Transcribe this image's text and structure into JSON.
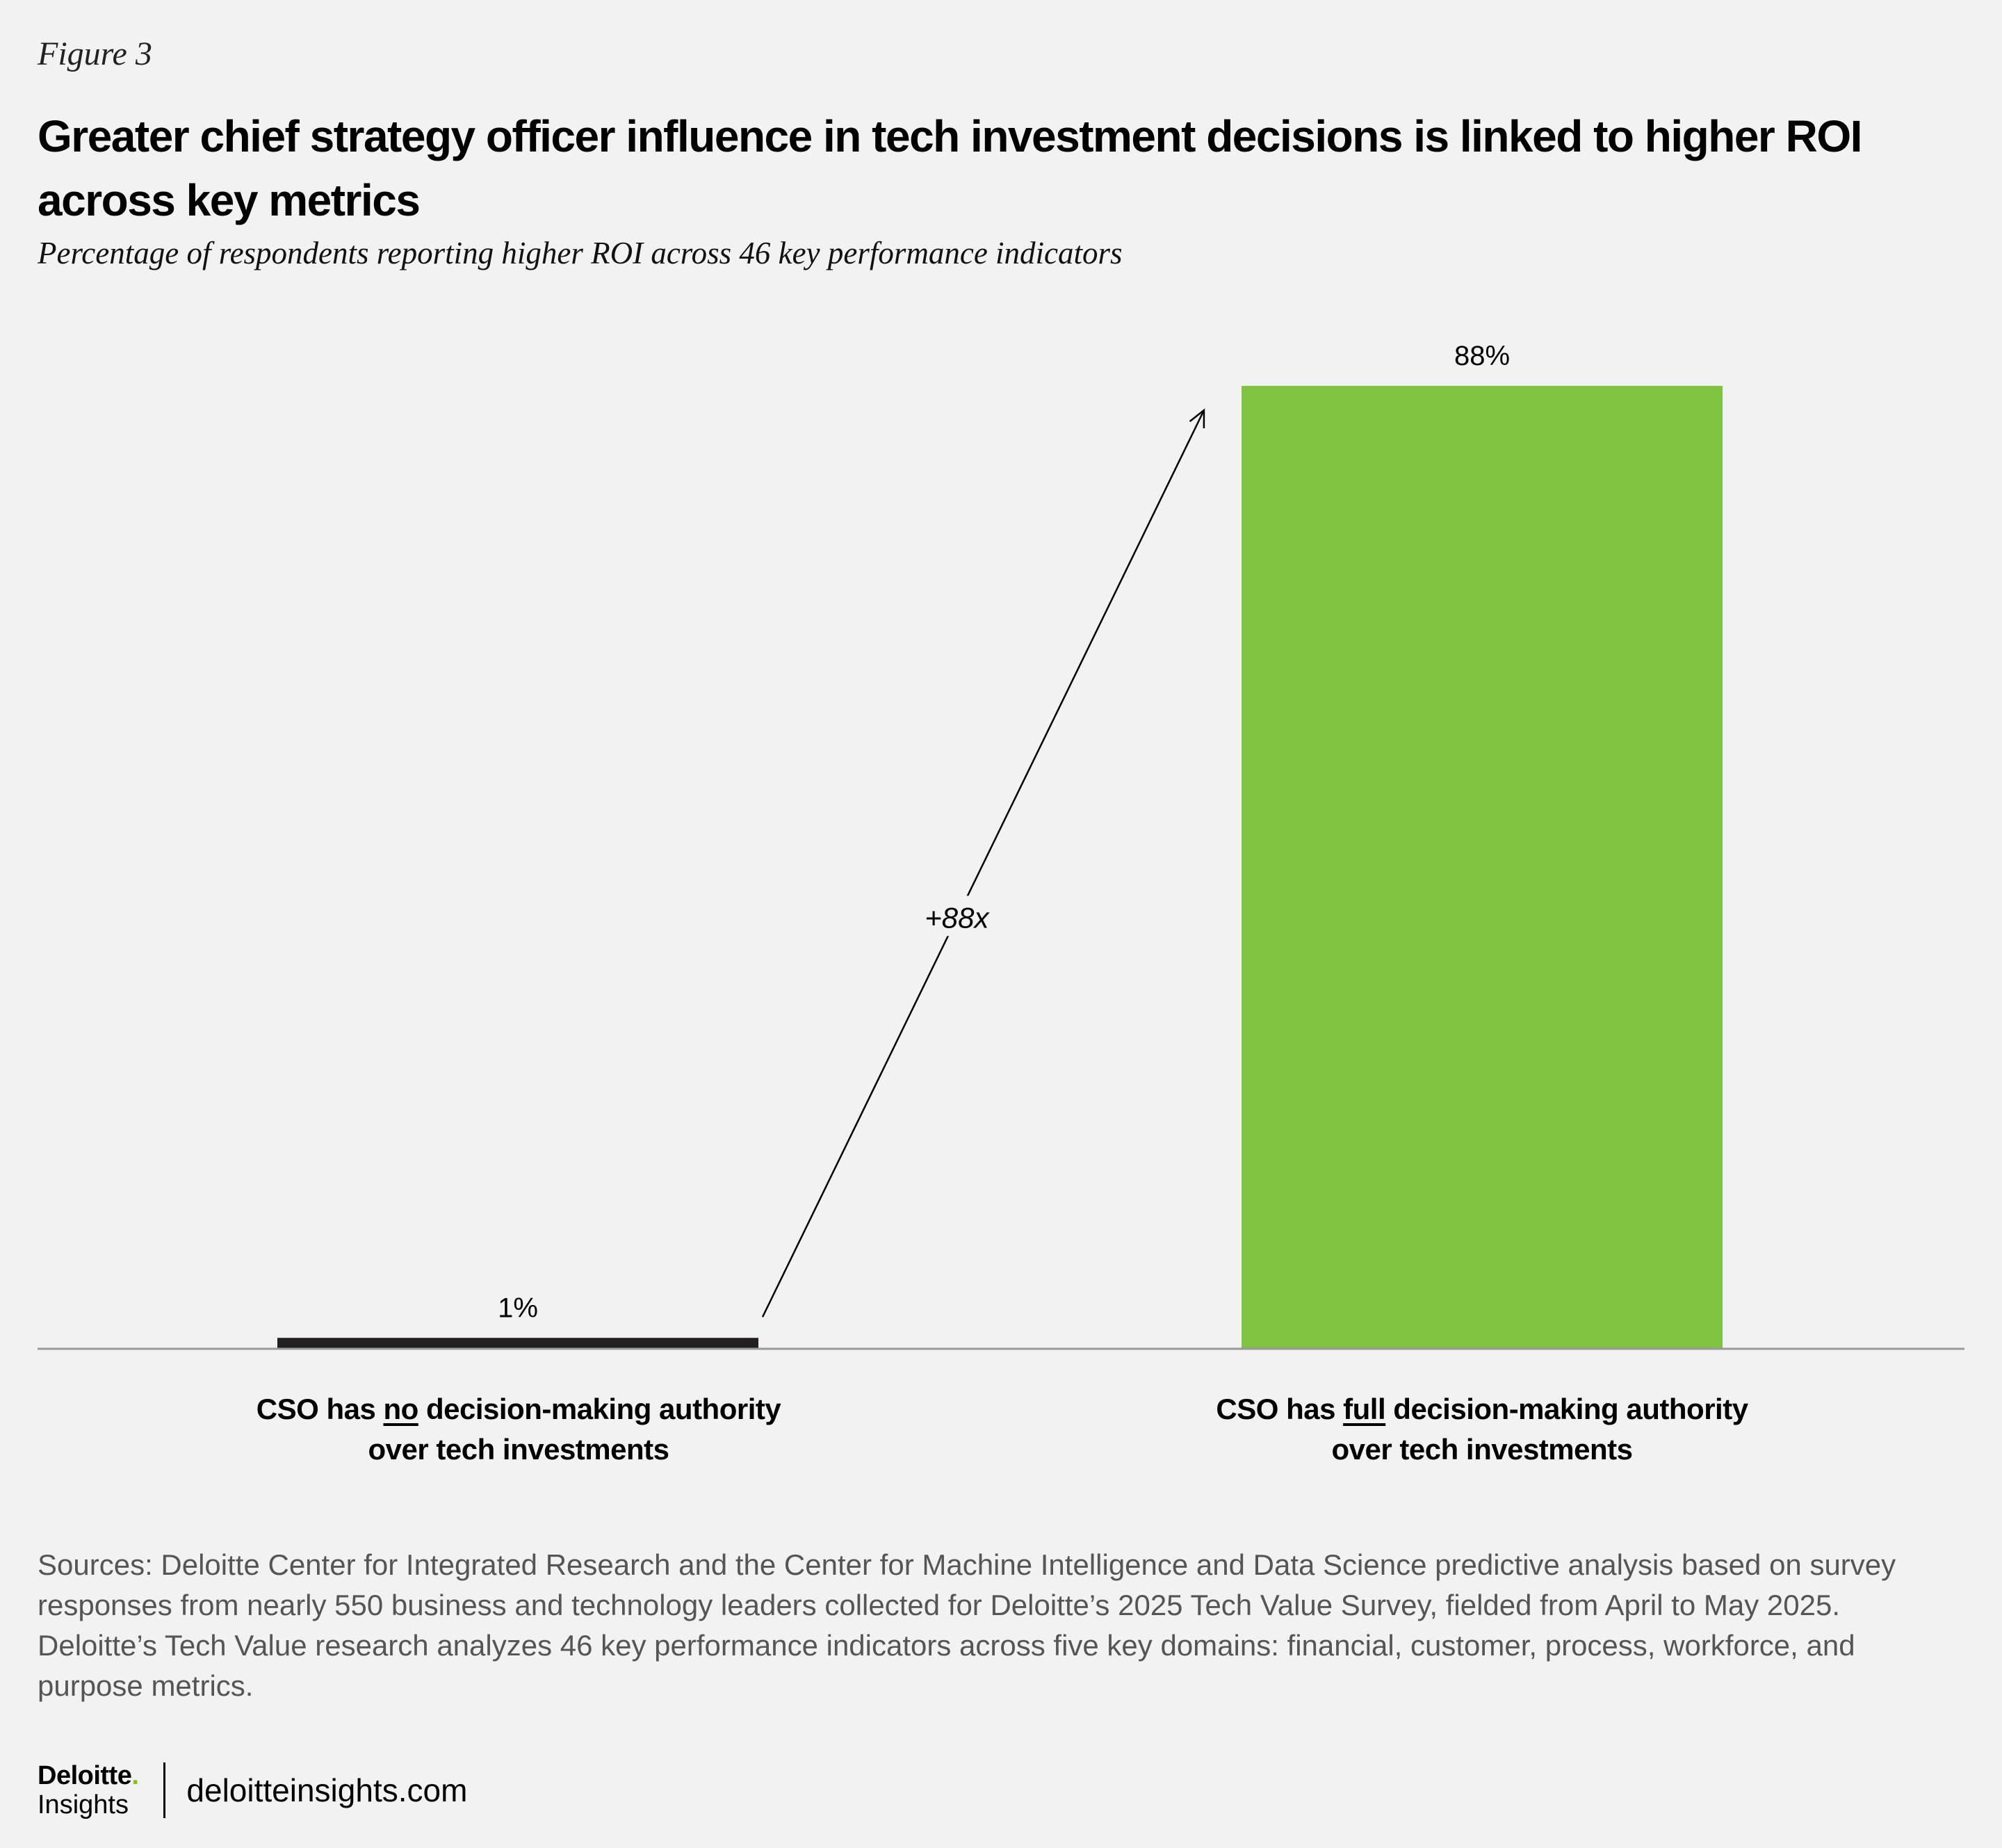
{
  "figure_label": "Figure 3",
  "title": "Greater chief strategy officer influence in tech investment decisions is linked to higher ROI across key metrics",
  "subtitle": "Percentage of respondents reporting higher ROI across 46 key performance indicators",
  "chart_data": {
    "type": "bar",
    "categories": [
      {
        "pre": "CSO has ",
        "emphasis": "no",
        "post": " decision-making authority",
        "line2": "over tech investments"
      },
      {
        "pre": "CSO has ",
        "emphasis": "full",
        "post": " decision-making authority",
        "line2": "over tech investments"
      }
    ],
    "values": [
      1,
      88
    ],
    "value_labels": [
      "1%",
      "88%"
    ],
    "colors": [
      "#231f20",
      "#80c342"
    ],
    "ylim": [
      0,
      88
    ],
    "annotation": "+88x",
    "xlabel": "",
    "ylabel": ""
  },
  "sources": "Sources: Deloitte Center for Integrated Research and the Center for Machine Intelligence and Data Science predictive analysis based on survey responses from nearly 550 business and technology leaders collected for Deloitte’s 2025 Tech Value Survey, fielded from April to May 2025. Deloitte’s Tech Value research analyzes 46 key performance indicators across five key domains: financial, customer, process, workforce, and purpose metrics.",
  "footer": {
    "brand": "Deloitte",
    "brand_dot": ".",
    "sub": "Insights",
    "site": "deloitteinsights.com"
  }
}
